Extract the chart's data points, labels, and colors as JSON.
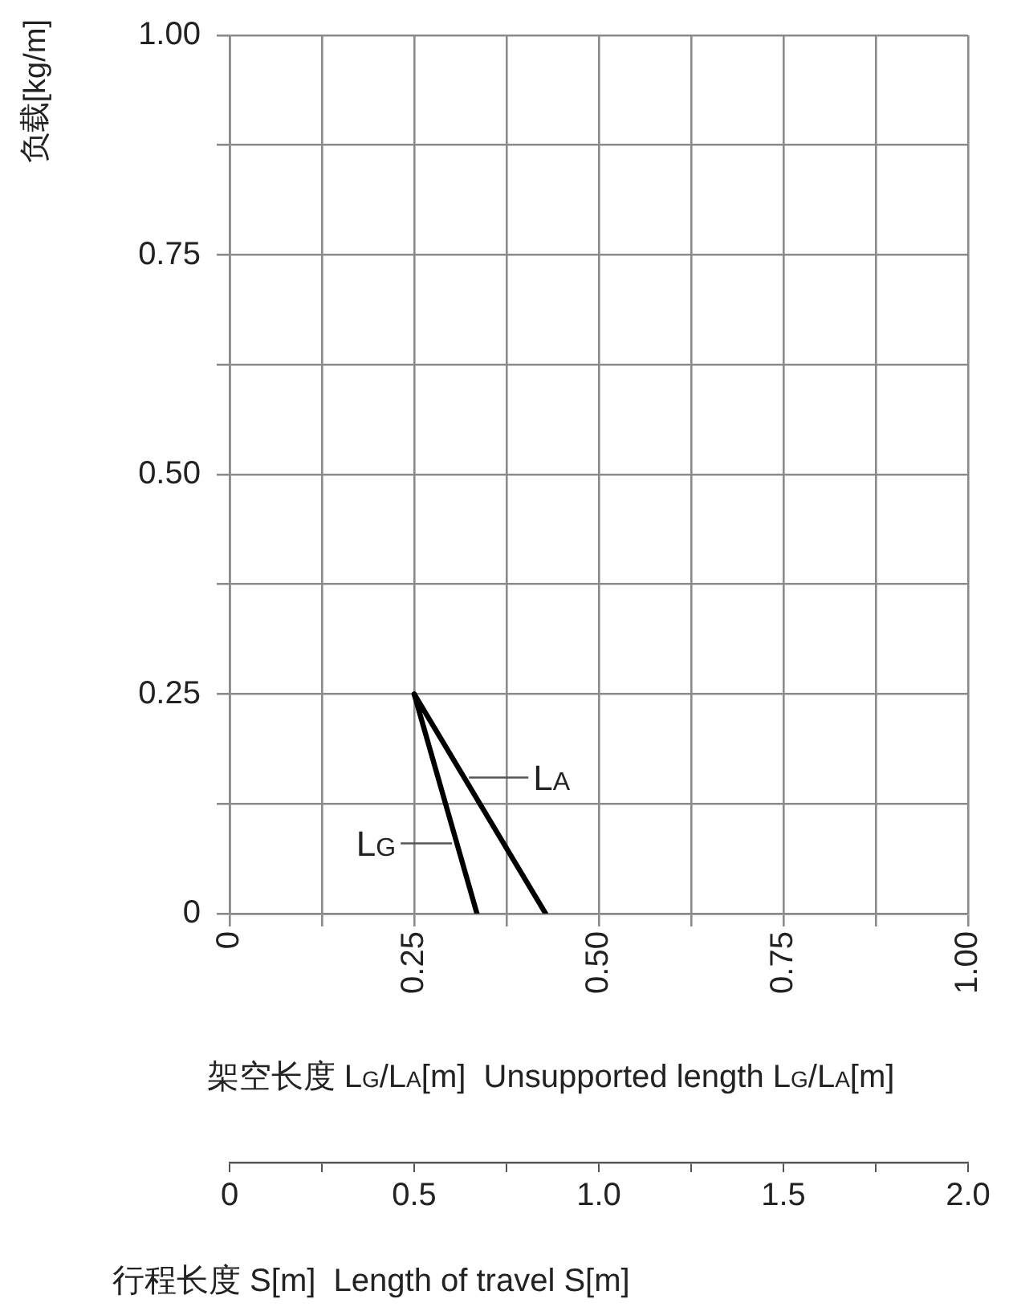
{
  "chart_data": {
    "type": "line",
    "xlabel": "架空长度 L$_{G}$/L$_{A}$[m]  Unsupported length L$_{G}$/L$_{A}$[m]",
    "ylabel": "负载[kg/m]",
    "x2label": "行程长度 S[m]  Length of travel S[m]",
    "series": [
      {
        "name": "L$_{G}$",
        "color": "#000000",
        "x": [
          0.25,
          0.335
        ],
        "values": [
          0.25,
          0
        ]
      },
      {
        "name": "L$_{A}$",
        "color": "#000000",
        "x": [
          0.25,
          0.428
        ],
        "values": [
          0.25,
          0
        ]
      }
    ],
    "xlim": [
      0,
      1
    ],
    "xticks": [
      0,
      {
        "value": 0.125,
        "label": null
      },
      {
        "value": 0.25,
        "label": "0.25"
      },
      {
        "value": 0.375,
        "label": null
      },
      {
        "value": 0.5,
        "label": "0.50"
      },
      {
        "value": 0.625,
        "label": null
      },
      {
        "value": 0.75,
        "label": "0.75"
      },
      {
        "value": 0.875,
        "label": null
      },
      {
        "value": 1,
        "label": "1.00"
      }
    ],
    "ylim": [
      0,
      1
    ],
    "yticks": [
      0,
      {
        "value": 0.125,
        "label": null
      },
      {
        "value": 0.25,
        "label": "0.25"
      },
      {
        "value": 0.375,
        "label": null
      },
      {
        "value": 0.5,
        "label": "0.50"
      },
      {
        "value": 0.625,
        "label": null
      },
      {
        "value": 0.75,
        "label": "0.75"
      },
      {
        "value": 0.875,
        "label": null
      },
      {
        "value": 1,
        "label": "1.00"
      }
    ],
    "x2lim": [
      0,
      2
    ],
    "x2ticks": [
      0,
      {
        "value": 0.25,
        "label": null
      },
      {
        "value": 0.5,
        "label": "0.5"
      },
      {
        "value": 0.75,
        "label": null
      },
      {
        "value": 1,
        "label": "1.0"
      },
      {
        "value": 1.25,
        "label": null
      },
      {
        "value": 1.5,
        "label": "1.5"
      },
      {
        "value": 1.75,
        "label": null
      },
      {
        "value": 2,
        "label": "2.0"
      }
    ],
    "grid": true,
    "legend": false,
    "marker": "none",
    "line_style": "solid"
  }
}
